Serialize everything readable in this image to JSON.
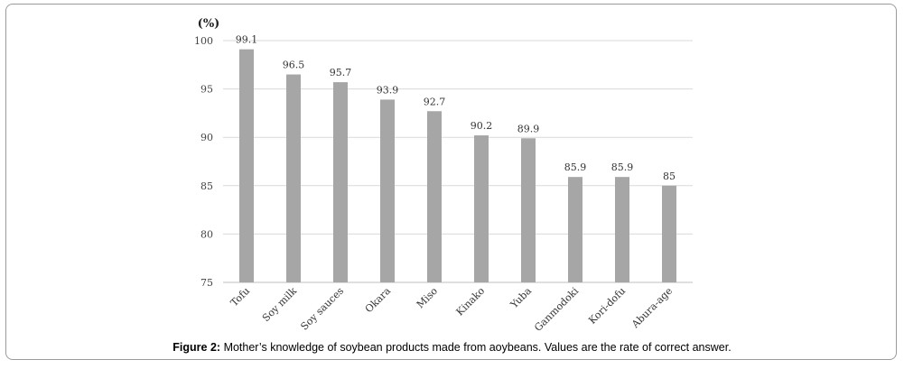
{
  "chart_data": {
    "type": "bar",
    "unit_label": "(%)",
    "categories": [
      "Tofu",
      "Soy milk",
      "Soy sauces",
      "Okara",
      "Miso",
      "Kinako",
      "Yuba",
      "Ganmodoki",
      "Kori-dofu",
      "Abura-age"
    ],
    "values": [
      99.1,
      96.5,
      95.7,
      93.9,
      92.7,
      90.2,
      89.9,
      85.9,
      85.9,
      85
    ],
    "data_labels": [
      "99.1",
      "96.5",
      "95.7",
      "93.9",
      "92.7",
      "90.2",
      "89.9",
      "85.9",
      "85.9",
      "85"
    ],
    "yticks": [
      75,
      80,
      85,
      90,
      95,
      100
    ],
    "ylim": [
      75,
      100
    ],
    "grid": true,
    "bar_color": "#a6a6a6",
    "grid_color": "#d9d9d9"
  },
  "caption": {
    "prefix": "Figure 2:",
    "text": " Mother’s knowledge of soybean products made from aoybeans. Values are the rate of correct answer."
  }
}
